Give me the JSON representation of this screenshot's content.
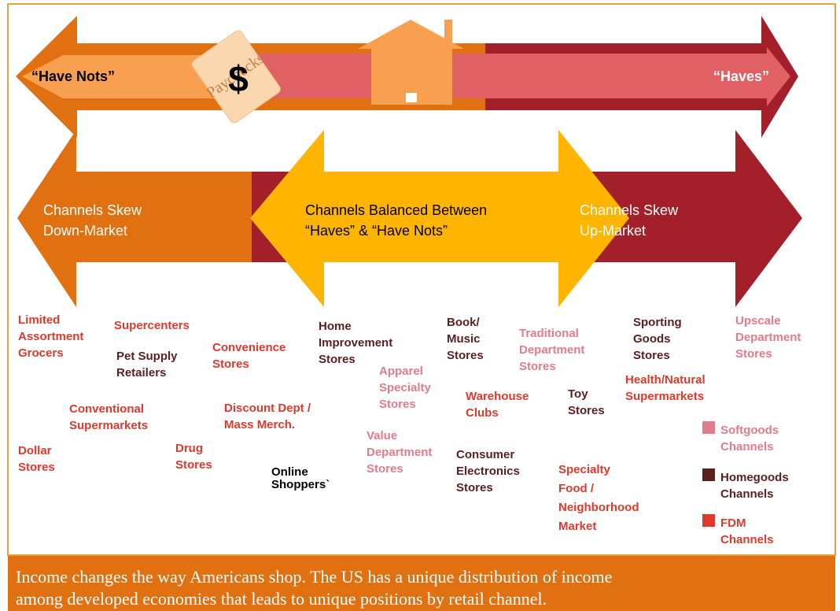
{
  "top_arrow": {
    "left_label": "“Have Nots”",
    "right_label": "“Haves”",
    "paycheck_symbol": "$",
    "paycheck_label": "Paychecks"
  },
  "channel_arrows": [
    {
      "lines": [
        "Channels Skew",
        "Down-Market"
      ]
    },
    {
      "lines": [
        "Channels Balanced Between",
        "“Haves” & “Have Nots”"
      ]
    },
    {
      "lines": [
        "Channels Skew",
        "Up-Market"
      ]
    }
  ],
  "channels": [
    {
      "lines": [
        "Limited",
        "Assortment",
        "Grocers"
      ],
      "color": "#e0392b"
    },
    {
      "lines": [
        "Supercenters"
      ],
      "color": "#e0392b"
    },
    {
      "lines": [
        "Pet Supply",
        "Retailers"
      ],
      "color": "#5b1f1f"
    },
    {
      "lines": [
        "Convenience",
        "Stores"
      ],
      "color": "#e0392b"
    },
    {
      "lines": [
        "Home",
        "Improvement",
        "Stores"
      ],
      "color": "#5b1f1f"
    },
    {
      "lines": [
        "Book/",
        "Music",
        "Stores"
      ],
      "color": "#5b1f1f"
    },
    {
      "lines": [
        "Traditional",
        "Department",
        "Stores"
      ],
      "color": "#e37b8c"
    },
    {
      "lines": [
        "Sporting",
        "Goods",
        "Stores"
      ],
      "color": "#5b1f1f"
    },
    {
      "lines": [
        "Upscale",
        "Department",
        "Stores"
      ],
      "color": "#e37b8c"
    },
    {
      "lines": [
        "Apparel",
        "Specialty",
        "Stores"
      ],
      "color": "#e37b8c"
    },
    {
      "lines": [
        "Warehouse",
        "Clubs"
      ],
      "color": "#e0392b"
    },
    {
      "lines": [
        "Toy",
        "Stores"
      ],
      "color": "#5b1f1f"
    },
    {
      "lines": [
        "Health/Natural",
        "Supermarkets"
      ],
      "color": "#e0392b"
    },
    {
      "lines": [
        "Conventional",
        "Supermarkets"
      ],
      "color": "#e0392b"
    },
    {
      "lines": [
        "Discount Dept /",
        "Mass Merch."
      ],
      "color": "#e0392b"
    },
    {
      "lines": [
        "Value",
        "Department",
        "Stores"
      ],
      "color": "#e37b8c"
    },
    {
      "lines": [
        "Dollar",
        "Stores"
      ],
      "color": "#e0392b"
    },
    {
      "lines": [
        "Drug",
        "Stores"
      ],
      "color": "#e0392b"
    },
    {
      "lines": [
        "Online",
        "Shoppers`"
      ],
      "color": "#000000"
    },
    {
      "lines": [
        "Consumer",
        "Electronics",
        "Stores"
      ],
      "color": "#5b1f1f"
    },
    {
      "lines": [
        "Specialty",
        "Food /",
        "Neighborhood",
        "Market"
      ],
      "color": "#e0392b"
    }
  ],
  "legend": [
    {
      "lines": [
        "Softgoods",
        "Channels"
      ],
      "color": "#e37b8c"
    },
    {
      "lines": [
        "Homegoods",
        "Channels"
      ],
      "color": "#5b1f1f"
    },
    {
      "lines": [
        "FDM",
        "Channels"
      ],
      "color": "#e0392b"
    }
  ],
  "caption": [
    "Income changes the way Americans shop. The US has a unique distribution of income",
    "among developed economies that leads to unique positions by retail channel."
  ]
}
